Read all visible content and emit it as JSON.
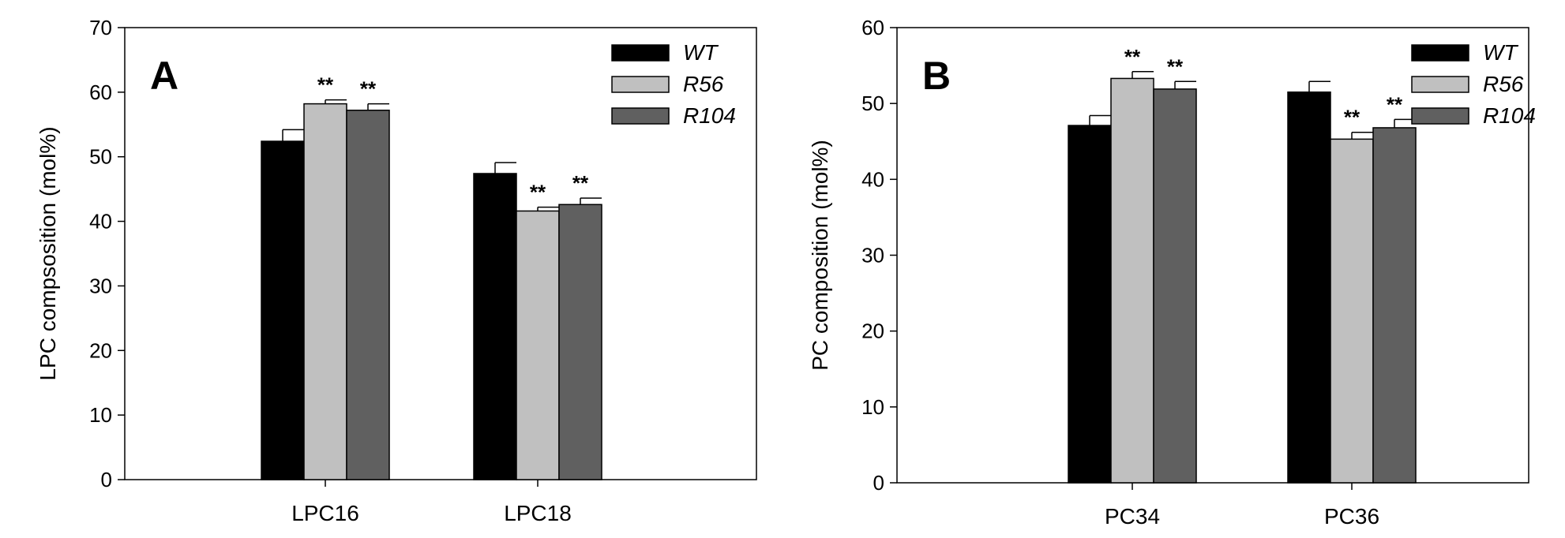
{
  "chart_data": [
    {
      "type": "bar",
      "panel_label": "A",
      "ylabel": "LPC compsosition (mol%)",
      "xlabel": "",
      "ylim": [
        0,
        70
      ],
      "yticks": [
        0,
        10,
        20,
        30,
        40,
        50,
        60,
        70
      ],
      "categories": [
        "LPC16",
        "LPC18"
      ],
      "grid": false,
      "legend_position": "top-right",
      "series": [
        {
          "name": "WT",
          "values": [
            52.4,
            47.4
          ],
          "errors": [
            1.8,
            1.7
          ],
          "color": "#000000",
          "significance": [
            "",
            ""
          ]
        },
        {
          "name": "R56",
          "values": [
            58.2,
            41.6
          ],
          "errors": [
            0.6,
            0.6
          ],
          "color": "#c0c0c0",
          "significance": [
            "**",
            "**"
          ]
        },
        {
          "name": "R104",
          "values": [
            57.2,
            42.6
          ],
          "errors": [
            1.0,
            1.0
          ],
          "color": "#606060",
          "significance": [
            "**",
            "**"
          ]
        }
      ]
    },
    {
      "type": "bar",
      "panel_label": "B",
      "ylabel": "PC composition (mol%)",
      "xlabel": "",
      "ylim": [
        0,
        60
      ],
      "yticks": [
        0,
        10,
        20,
        30,
        40,
        50,
        60
      ],
      "categories": [
        "PC34",
        "PC36"
      ],
      "grid": false,
      "legend_position": "top-right",
      "series": [
        {
          "name": "WT",
          "values": [
            47.1,
            51.5
          ],
          "errors": [
            1.3,
            1.4
          ],
          "color": "#000000",
          "significance": [
            "",
            ""
          ]
        },
        {
          "name": "R56",
          "values": [
            53.3,
            45.3
          ],
          "errors": [
            0.9,
            0.9
          ],
          "color": "#c0c0c0",
          "significance": [
            "**",
            "**"
          ]
        },
        {
          "name": "R104",
          "values": [
            51.9,
            46.8
          ],
          "errors": [
            1.0,
            1.1
          ],
          "color": "#606060",
          "significance": [
            "**",
            "**"
          ]
        }
      ]
    }
  ]
}
